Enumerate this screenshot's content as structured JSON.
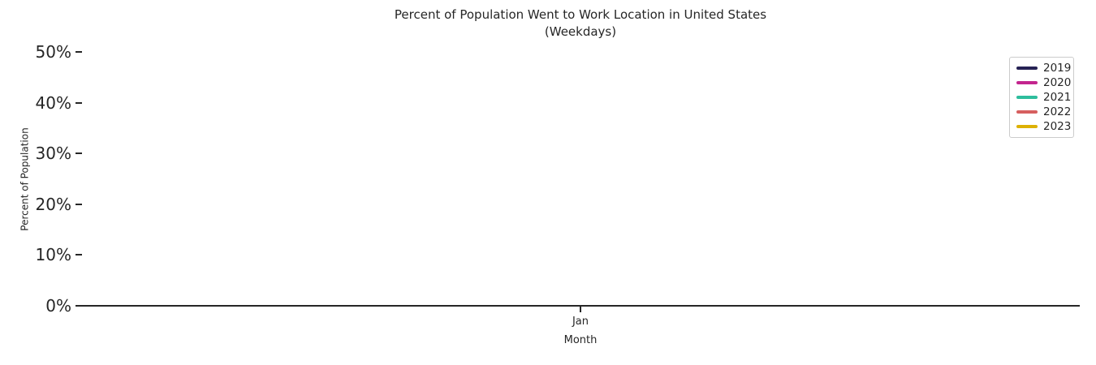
{
  "figure": {
    "background_color": "#ffffff",
    "text_color": "#262626",
    "spine_color": "#262626"
  },
  "chart_data": {
    "type": "line",
    "title": "Percent of Population Went to Work Location in United States",
    "subtitle": "(Weekdays)",
    "xlabel": "Month",
    "ylabel": "Percent of Population",
    "x_tick_labels": [
      "Jan"
    ],
    "y_tick_labels": [
      "0%",
      "10%",
      "20%",
      "30%",
      "40%",
      "50%"
    ],
    "ylim": [
      0,
      52
    ],
    "grid": false,
    "legend_position": "upper right",
    "series": [
      {
        "name": "2019",
        "color": "#262254",
        "values": []
      },
      {
        "name": "2020",
        "color": "#c3258e",
        "values": []
      },
      {
        "name": "2021",
        "color": "#2ebd9d",
        "values": []
      },
      {
        "name": "2022",
        "color": "#d65f5f",
        "values": []
      },
      {
        "name": "2023",
        "color": "#ddb104",
        "values": []
      }
    ],
    "plotted_lines_visible": false
  }
}
